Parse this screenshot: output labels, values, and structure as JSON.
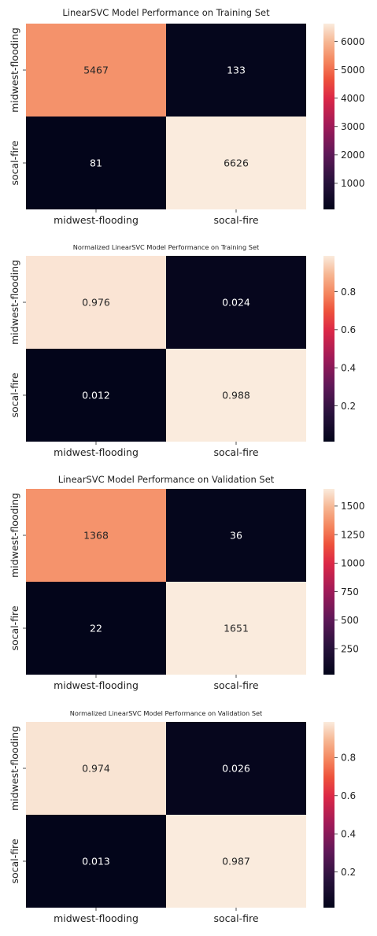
{
  "chart_data": [
    {
      "type": "heatmap",
      "title": "LinearSVC Model Performance on Training Set",
      "row_labels": [
        "midwest-flooding",
        "socal-fire"
      ],
      "col_labels": [
        "midwest-flooding",
        "socal-fire"
      ],
      "values": [
        [
          5467,
          133
        ],
        [
          81,
          6626
        ]
      ],
      "cell_labels": [
        [
          "5467",
          "133"
        ],
        [
          "81",
          "6626"
        ]
      ],
      "colorbar": {
        "ticks": [
          "1000",
          "2000",
          "3000",
          "4000",
          "5000",
          "6000"
        ],
        "tick_values": [
          1000,
          2000,
          3000,
          4000,
          5000,
          6000
        ],
        "vmin": 81,
        "vmax": 6626
      }
    },
    {
      "type": "heatmap",
      "title": "Normalized LinearSVC Model Performance on Training Set",
      "row_labels": [
        "midwest-flooding",
        "socal-fire"
      ],
      "col_labels": [
        "midwest-flooding",
        "socal-fire"
      ],
      "values": [
        [
          0.976,
          0.024
        ],
        [
          0.012,
          0.988
        ]
      ],
      "cell_labels": [
        [
          "0.976",
          "0.024"
        ],
        [
          "0.012",
          "0.988"
        ]
      ],
      "colorbar": {
        "ticks": [
          "0.2",
          "0.4",
          "0.6",
          "0.8"
        ],
        "tick_values": [
          0.2,
          0.4,
          0.6,
          0.8
        ],
        "vmin": 0.012,
        "vmax": 0.988
      }
    },
    {
      "type": "heatmap",
      "title": "LinearSVC Model Performance on Validation Set",
      "row_labels": [
        "midwest-flooding",
        "socal-fire"
      ],
      "col_labels": [
        "midwest-flooding",
        "socal-fire"
      ],
      "values": [
        [
          1368,
          36
        ],
        [
          22,
          1651
        ]
      ],
      "cell_labels": [
        [
          "1368",
          "36"
        ],
        [
          "22",
          "1651"
        ]
      ],
      "colorbar": {
        "ticks": [
          "250",
          "500",
          "750",
          "1000",
          "1250",
          "1500"
        ],
        "tick_values": [
          250,
          500,
          750,
          1000,
          1250,
          1500
        ],
        "vmin": 22,
        "vmax": 1651
      }
    },
    {
      "type": "heatmap",
      "title": "Normalized LinearSVC Model Performance on Validation Set",
      "row_labels": [
        "midwest-flooding",
        "socal-fire"
      ],
      "col_labels": [
        "midwest-flooding",
        "socal-fire"
      ],
      "values": [
        [
          0.974,
          0.026
        ],
        [
          0.013,
          0.987
        ]
      ],
      "cell_labels": [
        [
          "0.974",
          "0.026"
        ],
        [
          "0.013",
          "0.987"
        ]
      ],
      "colorbar": {
        "ticks": [
          "0.2",
          "0.4",
          "0.6",
          "0.8"
        ],
        "tick_values": [
          0.2,
          0.4,
          0.6,
          0.8
        ],
        "vmin": 0.013,
        "vmax": 0.987
      }
    }
  ]
}
